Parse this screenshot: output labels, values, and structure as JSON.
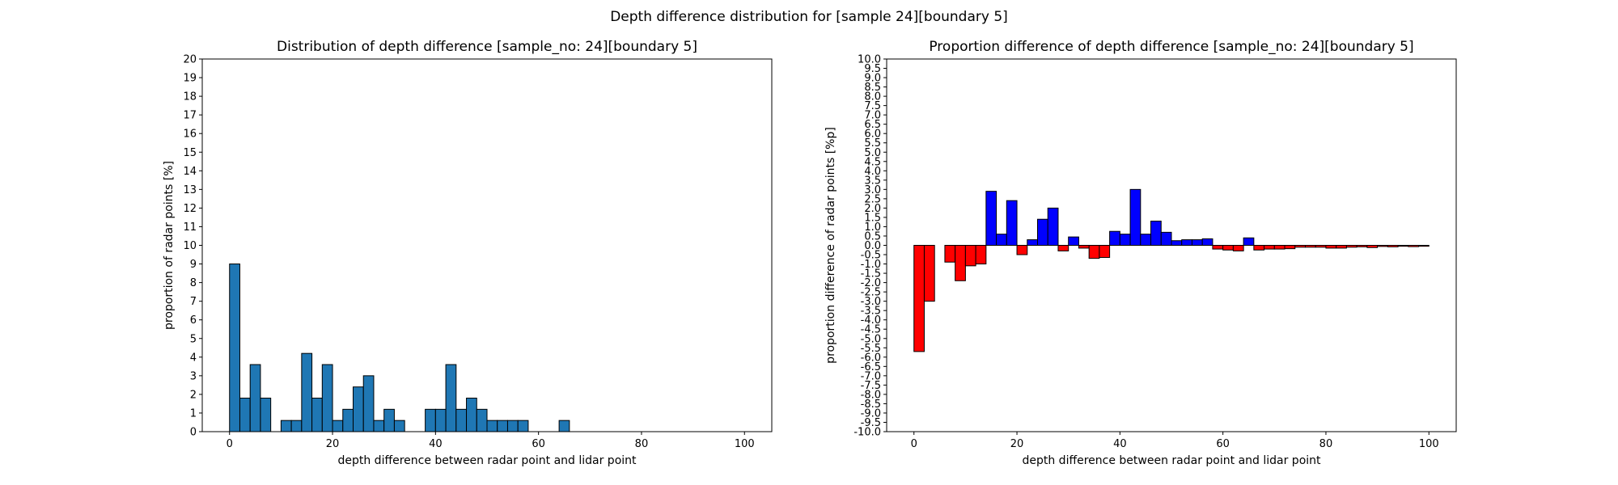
{
  "figure": {
    "suptitle": "Depth difference distribution for [sample 24][boundary 5]"
  },
  "chart_data": [
    {
      "type": "bar",
      "title": "Distribution of depth difference [sample_no: 24][boundary 5]",
      "xlabel": "depth difference between radar point and lidar point",
      "ylabel": "proportion of radar points [%]",
      "xlim": [
        -5.3,
        105.3
      ],
      "ylim": [
        0,
        20
      ],
      "xticks": [
        0,
        20,
        40,
        60,
        80,
        100
      ],
      "yticks": [
        0,
        1,
        2,
        3,
        4,
        5,
        6,
        7,
        8,
        9,
        10,
        11,
        12,
        13,
        14,
        15,
        16,
        17,
        18,
        19,
        20
      ],
      "bin_width": 2,
      "bar_color": "#1f77b4",
      "edge_color": "#000000",
      "bins": [
        {
          "x": 0,
          "value": 9.0
        },
        {
          "x": 2,
          "value": 1.8
        },
        {
          "x": 4,
          "value": 3.6
        },
        {
          "x": 6,
          "value": 1.8
        },
        {
          "x": 10,
          "value": 0.6
        },
        {
          "x": 12,
          "value": 0.6
        },
        {
          "x": 14,
          "value": 4.2
        },
        {
          "x": 16,
          "value": 1.8
        },
        {
          "x": 18,
          "value": 3.6
        },
        {
          "x": 20,
          "value": 0.6
        },
        {
          "x": 22,
          "value": 1.2
        },
        {
          "x": 24,
          "value": 2.4
        },
        {
          "x": 26,
          "value": 3.0
        },
        {
          "x": 28,
          "value": 0.6
        },
        {
          "x": 30,
          "value": 1.2
        },
        {
          "x": 32,
          "value": 0.6
        },
        {
          "x": 38,
          "value": 1.2
        },
        {
          "x": 40,
          "value": 1.2
        },
        {
          "x": 42,
          "value": 3.6
        },
        {
          "x": 44,
          "value": 1.2
        },
        {
          "x": 46,
          "value": 1.8
        },
        {
          "x": 48,
          "value": 1.2
        },
        {
          "x": 50,
          "value": 0.6
        },
        {
          "x": 52,
          "value": 0.6
        },
        {
          "x": 54,
          "value": 0.6
        },
        {
          "x": 56,
          "value": 0.6
        },
        {
          "x": 64,
          "value": 0.6
        }
      ]
    },
    {
      "type": "bar",
      "title": "Proportion difference of depth difference [sample_no: 24][boundary 5]",
      "xlabel": "depth difference between radar point and lidar point",
      "ylabel": "proportion difference of radar points [%p]",
      "xlim": [
        -5.3,
        105.3
      ],
      "ylim": [
        -10,
        10
      ],
      "xticks": [
        0,
        20,
        40,
        60,
        80,
        100
      ],
      "yticks": [
        -10.0,
        -9.5,
        -9.0,
        -8.5,
        -8.0,
        -7.5,
        -7.0,
        -6.5,
        -6.0,
        -5.5,
        -5.0,
        -4.5,
        -4.0,
        -3.5,
        -3.0,
        -2.5,
        -2.0,
        -1.5,
        -1.0,
        -0.5,
        0.0,
        0.5,
        1.0,
        1.5,
        2.0,
        2.5,
        3.0,
        3.5,
        4.0,
        4.5,
        5.0,
        5.5,
        6.0,
        6.5,
        7.0,
        7.5,
        8.0,
        8.5,
        9.0,
        9.5,
        10.0
      ],
      "bin_width": 2,
      "positive_color": "#0000ff",
      "negative_color": "#ff0000",
      "edge_color": "#000000",
      "bins": [
        {
          "x": 0,
          "value": -5.7
        },
        {
          "x": 2,
          "value": -3.0
        },
        {
          "x": 6,
          "value": -0.9
        },
        {
          "x": 8,
          "value": -1.9
        },
        {
          "x": 10,
          "value": -1.1
        },
        {
          "x": 12,
          "value": -1.0
        },
        {
          "x": 14,
          "value": 2.9
        },
        {
          "x": 16,
          "value": 0.6
        },
        {
          "x": 18,
          "value": 2.4
        },
        {
          "x": 20,
          "value": -0.5
        },
        {
          "x": 22,
          "value": 0.3
        },
        {
          "x": 24,
          "value": 1.4
        },
        {
          "x": 26,
          "value": 2.0
        },
        {
          "x": 28,
          "value": -0.3
        },
        {
          "x": 30,
          "value": 0.45
        },
        {
          "x": 32,
          "value": -0.15
        },
        {
          "x": 34,
          "value": -0.7
        },
        {
          "x": 36,
          "value": -0.65
        },
        {
          "x": 38,
          "value": 0.75
        },
        {
          "x": 40,
          "value": 0.6
        },
        {
          "x": 42,
          "value": 3.0
        },
        {
          "x": 44,
          "value": 0.6
        },
        {
          "x": 46,
          "value": 1.3
        },
        {
          "x": 48,
          "value": 0.7
        },
        {
          "x": 50,
          "value": 0.25
        },
        {
          "x": 52,
          "value": 0.3
        },
        {
          "x": 54,
          "value": 0.3
        },
        {
          "x": 56,
          "value": 0.35
        },
        {
          "x": 58,
          "value": -0.2
        },
        {
          "x": 60,
          "value": -0.25
        },
        {
          "x": 62,
          "value": -0.3
        },
        {
          "x": 64,
          "value": 0.4
        },
        {
          "x": 66,
          "value": -0.25
        },
        {
          "x": 68,
          "value": -0.2
        },
        {
          "x": 70,
          "value": -0.2
        },
        {
          "x": 72,
          "value": -0.18
        },
        {
          "x": 74,
          "value": -0.1
        },
        {
          "x": 76,
          "value": -0.1
        },
        {
          "x": 78,
          "value": -0.1
        },
        {
          "x": 80,
          "value": -0.15
        },
        {
          "x": 82,
          "value": -0.15
        },
        {
          "x": 84,
          "value": -0.1
        },
        {
          "x": 86,
          "value": -0.08
        },
        {
          "x": 88,
          "value": -0.12
        },
        {
          "x": 90,
          "value": -0.06
        },
        {
          "x": 92,
          "value": -0.08
        },
        {
          "x": 94,
          "value": -0.05
        },
        {
          "x": 96,
          "value": -0.07
        },
        {
          "x": 98,
          "value": -0.05
        }
      ]
    }
  ]
}
